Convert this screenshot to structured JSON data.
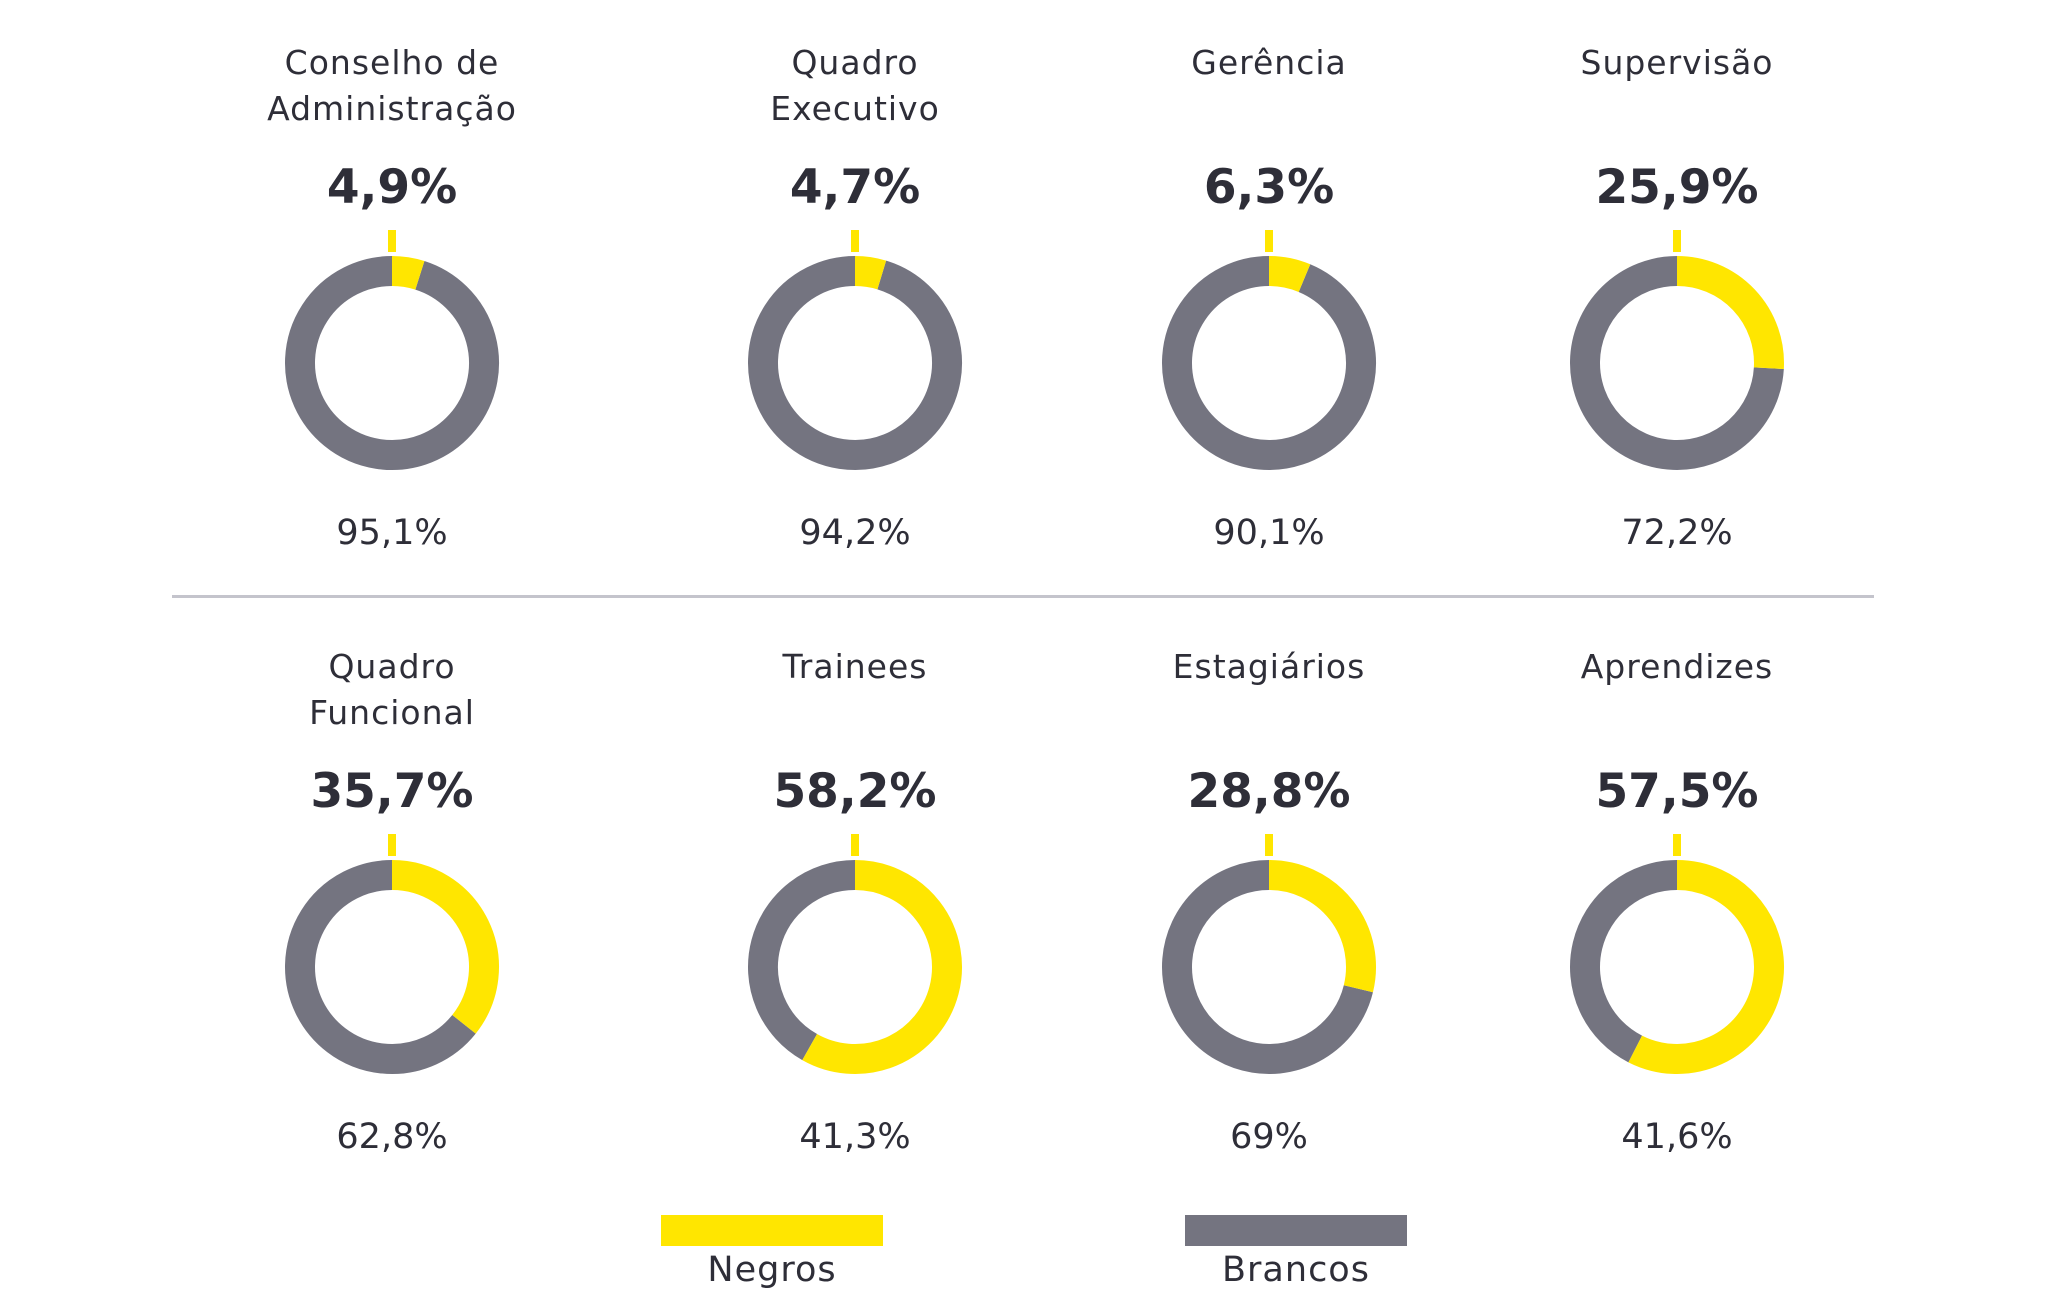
{
  "chart_data": {
    "type": "donut",
    "colors": {
      "Negros": "#FFE600",
      "Brancos": "#747480"
    },
    "legend": [
      "Negros",
      "Brancos"
    ],
    "legend_placement": "bottom",
    "charts": [
      {
        "title": [
          "Conselho de",
          "Administração"
        ],
        "negros": 4.9,
        "negros_label": "4,9%",
        "brancos": 95.1,
        "brancos_label": "95,1%"
      },
      {
        "title": [
          "Quadro",
          "Executivo"
        ],
        "negros": 4.7,
        "negros_label": "4,7%",
        "brancos": 94.2,
        "brancos_label": "94,2%"
      },
      {
        "title": [
          "Gerência"
        ],
        "negros": 6.3,
        "negros_label": "6,3%",
        "brancos": 90.1,
        "brancos_label": "90,1%"
      },
      {
        "title": [
          "Supervisão"
        ],
        "negros": 25.9,
        "negros_label": "25,9%",
        "brancos": 72.2,
        "brancos_label": "72,2%"
      },
      {
        "title": [
          "Quadro",
          "Funcional"
        ],
        "negros": 35.7,
        "negros_label": "35,7%",
        "brancos": 62.8,
        "brancos_label": "62,8%"
      },
      {
        "title": [
          "Trainees"
        ],
        "negros": 58.2,
        "negros_label": "58,2%",
        "brancos": 41.3,
        "brancos_label": "41,3%"
      },
      {
        "title": [
          "Estagiários"
        ],
        "negros": 28.8,
        "negros_label": "28,8%",
        "brancos": 69,
        "brancos_label": "69%"
      },
      {
        "title": [
          "Aprendizes"
        ],
        "negros": 57.5,
        "negros_label": "57,5%",
        "brancos": 41.6,
        "brancos_label": "41,6%"
      }
    ]
  }
}
